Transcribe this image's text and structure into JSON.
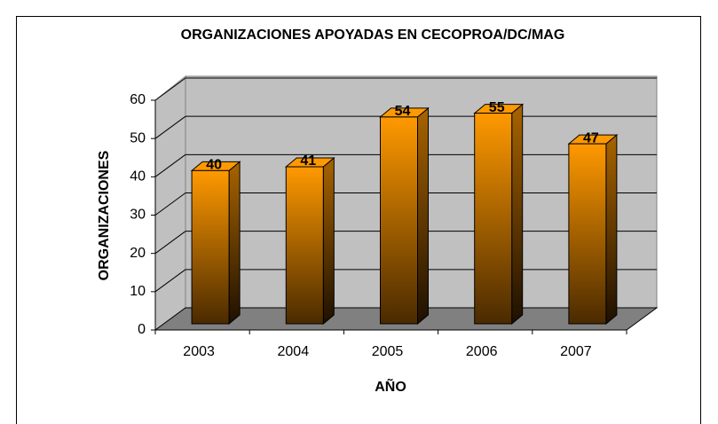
{
  "chart_data": {
    "type": "bar3d",
    "title": "ORGANIZACIONES APOYADAS EN CECOPROA/DC/MAG",
    "x_label": "AÑO",
    "y_label": "ORGANIZACIONES",
    "categories": [
      "2003",
      "2004",
      "2005",
      "2006",
      "2007"
    ],
    "values": [
      40,
      41,
      54,
      55,
      47
    ],
    "color": "#ff9900",
    "ylim": [
      0,
      60
    ],
    "yticks": [
      0,
      10,
      20,
      30,
      40,
      50,
      60
    ],
    "grid": true
  }
}
